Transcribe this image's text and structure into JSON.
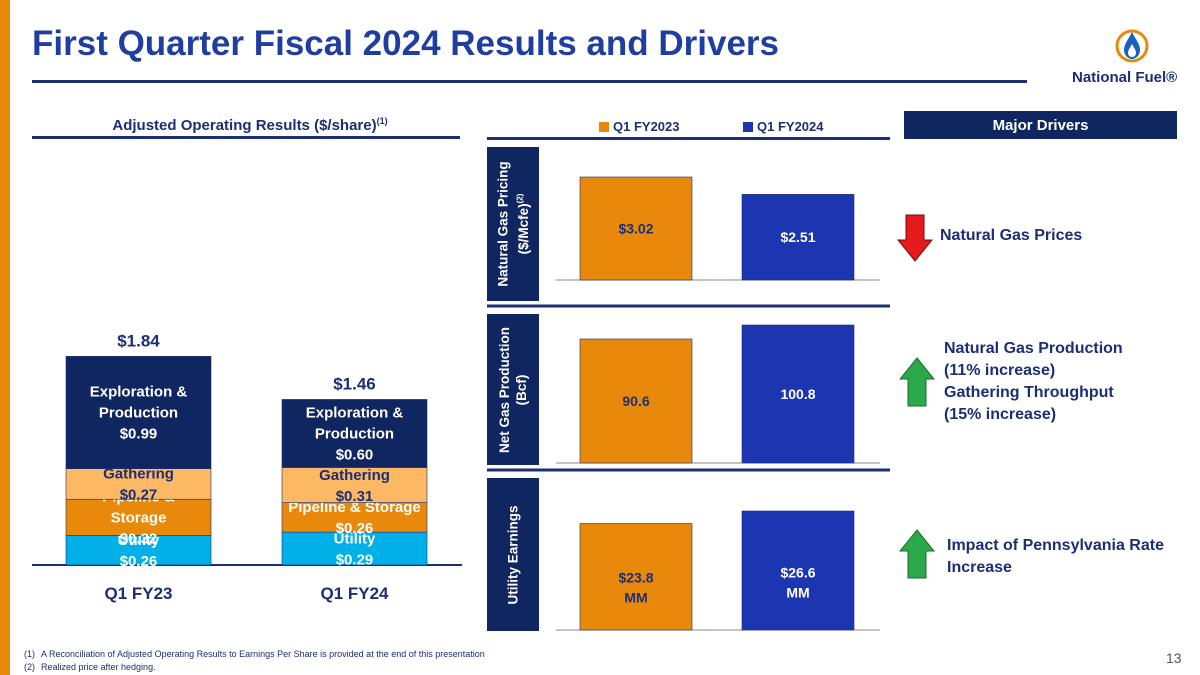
{
  "header": {
    "title": "First Quarter Fiscal 2024 Results and Drivers",
    "logo_text": "National Fuel®"
  },
  "left_chart": {
    "title": "Adjusted Operating Results ($/share)",
    "title_superscript": "(1)"
  },
  "legend": {
    "q1_fy2023": "Q1 FY2023",
    "q1_fy2024": "Q1 FY2024"
  },
  "drivers": {
    "header": "Major Drivers",
    "items": [
      {
        "direction": "down",
        "lines": [
          "Natural Gas Prices"
        ]
      },
      {
        "direction": "up",
        "lines": [
          "Natural Gas Production",
          "(11% increase)",
          "Gathering Throughput",
          "(15% increase)"
        ]
      },
      {
        "direction": "up",
        "lines": [
          "Impact of Pennsylvania Rate",
          "Increase"
        ]
      }
    ]
  },
  "side_labels": {
    "pricing_line1": "Natural Gas Pricing",
    "pricing_line2": "($/Mcfe)",
    "pricing_sup": "(2)",
    "production_line1": "Net Gas Production",
    "production_line2": "(Bcf)",
    "utility": "Utility Earnings"
  },
  "footnotes": [
    {
      "num": "(1)",
      "text": "A Reconciliation of Adjusted Operating Results to Earnings Per Share is provided at the end of this presentation"
    },
    {
      "num": "(2)",
      "text": "Realized price after hedging."
    }
  ],
  "page_number": "13",
  "colors": {
    "ep": "#0f2660",
    "gathering": "#fdb863",
    "pipeline": "#e8890c",
    "utility": "#00b0e6",
    "fy2023": "#e8890c",
    "fy2024": "#1b36b0",
    "arrow_down": "#e41a1c",
    "arrow_up": "#2aa84a"
  },
  "chart_data": [
    {
      "type": "bar",
      "stacked": true,
      "title": "Adjusted Operating Results ($/share)",
      "categories": [
        "Q1 FY23",
        "Q1 FY24"
      ],
      "totals": [
        1.84,
        1.46
      ],
      "total_labels": [
        "$1.84",
        "$1.46"
      ],
      "series": [
        {
          "name": "Utility",
          "values": [
            0.26,
            0.29
          ],
          "labels": [
            [
              "Utility",
              "$0.26"
            ],
            [
              "Utility",
              "$0.29"
            ]
          ],
          "color": "#00b0e6",
          "text_color": "#ffffff"
        },
        {
          "name": "Pipeline & Storage",
          "values": [
            0.32,
            0.26
          ],
          "labels": [
            [
              "Pipeline &",
              "Storage",
              "$0.32"
            ],
            [
              "Pipeline & Storage",
              "$0.26"
            ]
          ],
          "color": "#e8890c",
          "text_color": "#ffffff"
        },
        {
          "name": "Gathering",
          "values": [
            0.27,
            0.31
          ],
          "labels": [
            [
              "Gathering",
              "$0.27"
            ],
            [
              "Gathering",
              "$0.31"
            ]
          ],
          "color": "#fdb863",
          "text_color": "#1c2e74"
        },
        {
          "name": "Exploration & Production",
          "values": [
            0.99,
            0.6
          ],
          "labels": [
            [
              "Exploration &",
              "Production",
              "$0.99"
            ],
            [
              "Exploration &",
              "Production",
              "$0.60"
            ]
          ],
          "color": "#0f2660",
          "text_color": "#ffffff"
        }
      ],
      "ylim": [
        0,
        2.0
      ]
    },
    {
      "type": "bar",
      "title": "Natural Gas Pricing ($/Mcfe)",
      "categories": [
        "Q1 FY2023",
        "Q1 FY2024"
      ],
      "values": [
        3.02,
        2.51
      ],
      "labels": [
        "$3.02",
        "$2.51"
      ],
      "ylim": [
        0,
        3.3
      ]
    },
    {
      "type": "bar",
      "title": "Net Gas Production (Bcf)",
      "categories": [
        "Q1 FY2023",
        "Q1 FY2024"
      ],
      "values": [
        90.6,
        100.8
      ],
      "labels": [
        "90.6",
        "100.8"
      ],
      "ylim": [
        0,
        110
      ]
    },
    {
      "type": "bar",
      "title": "Utility Earnings",
      "categories": [
        "Q1 FY2023",
        "Q1 FY2024"
      ],
      "values": [
        23.8,
        26.6
      ],
      "labels": [
        [
          "$23.8",
          "MM"
        ],
        [
          "$26.6",
          "MM"
        ]
      ],
      "ylim": [
        0,
        27
      ]
    }
  ]
}
